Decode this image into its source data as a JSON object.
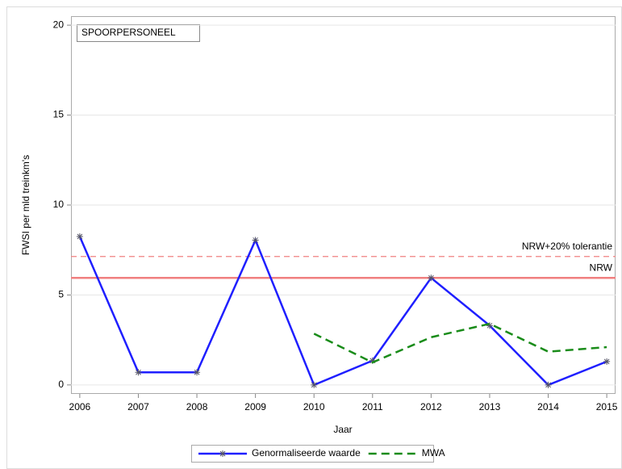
{
  "chart_data": {
    "type": "line",
    "annotation": "SPOORPERSONEEL",
    "x_label": "Jaar",
    "y_label": "FWSI per mld treinkm's",
    "x": [
      2006,
      2007,
      2008,
      2009,
      2010,
      2011,
      2012,
      2013,
      2014,
      2015
    ],
    "series": [
      {
        "name": "Genormaliseerde waarde",
        "color": "#1f1fff",
        "style": "solid",
        "marker": "star",
        "values": [
          8.25,
          0.7,
          0.7,
          8.05,
          0,
          1.35,
          5.95,
          3.3,
          0,
          1.3
        ]
      },
      {
        "name": "MWA",
        "color": "#1a8c1a",
        "style": "dashed",
        "marker": "none",
        "values": [
          null,
          null,
          null,
          null,
          2.85,
          1.25,
          2.65,
          3.4,
          1.85,
          2.1
        ]
      }
    ],
    "reference_lines": [
      {
        "label": "NRW+20% tolerantie",
        "value": 7.14,
        "color": "#f08080",
        "style": "dashed"
      },
      {
        "label": "NRW",
        "value": 5.95,
        "color": "#f08080",
        "style": "solid"
      }
    ],
    "xlim": [
      2005.85,
      2015.15
    ],
    "xticks": [
      2006,
      2007,
      2008,
      2009,
      2010,
      2011,
      2012,
      2013,
      2014,
      2015
    ],
    "ylim": [
      -0.5,
      20.5
    ],
    "yticks": [
      0,
      5,
      10,
      15,
      20
    ],
    "grid": true,
    "legend": "bottom"
  }
}
